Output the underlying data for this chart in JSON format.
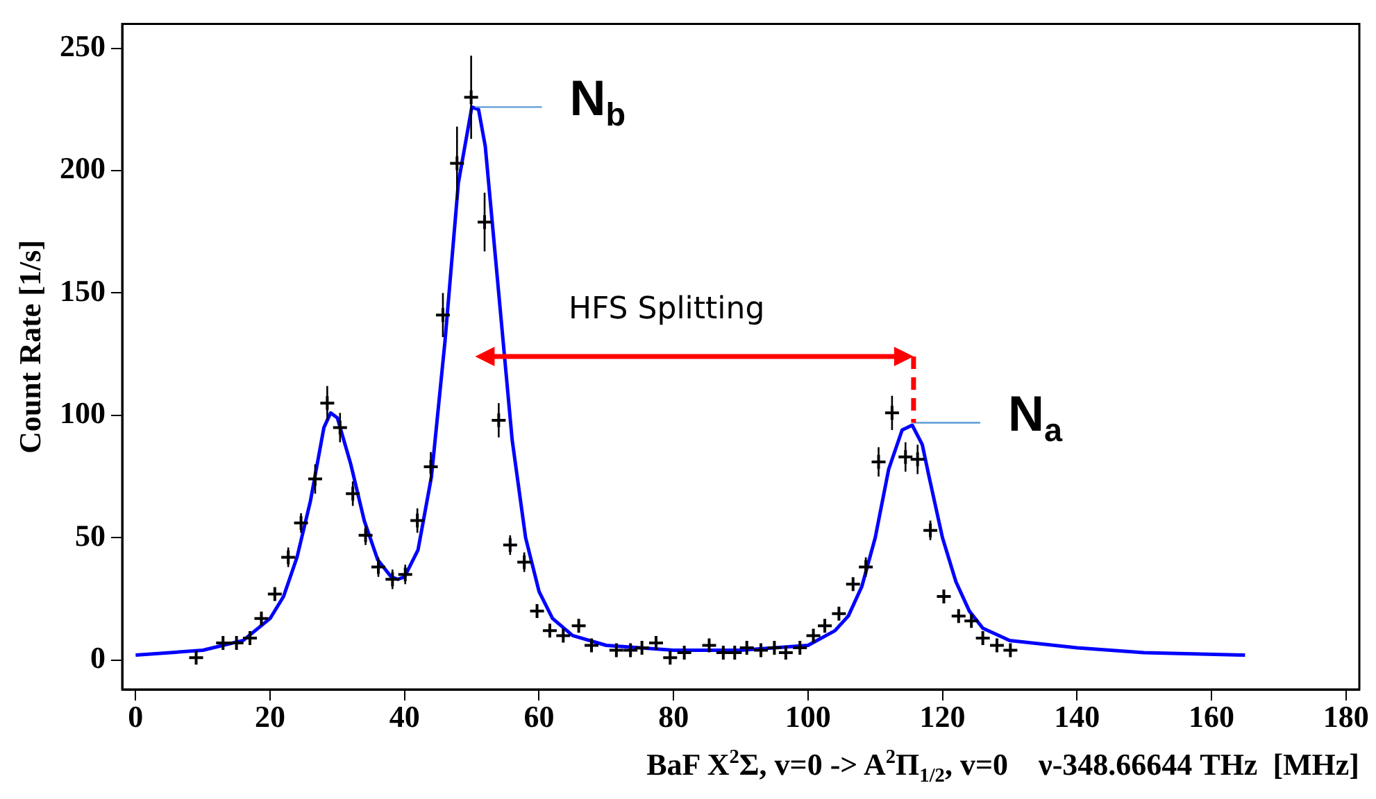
{
  "chart_data": {
    "type": "scatter",
    "xlabel": "BaF X$^{2}$Σ, v=0 -> A$^{2}$Π$_{1/2}$, v=0    ν-348.66644 THz  [MHz]",
    "ylabel": "Count Rate [1/s]",
    "xlim": [
      -2,
      182
    ],
    "xticks": [
      0,
      20,
      40,
      60,
      80,
      100,
      120,
      140,
      160,
      180
    ],
    "ylim": [
      -12,
      260
    ],
    "yticks": [
      0,
      50,
      100,
      150,
      200,
      250
    ],
    "grid": false,
    "legend": false,
    "annotations": [
      {
        "text": "N$_{b}$",
        "x": 50.5,
        "y": 226
      },
      {
        "text": "N$_{a}$",
        "x": 115.7,
        "y": 97
      },
      "HFS Splitting"
    ],
    "series": [
      {
        "type": "scatter",
        "color": "#000000",
        "marker": "cross",
        "x": [
          9,
          13,
          15,
          17,
          18.7,
          20.7,
          22.7,
          24.6,
          26.7,
          28.5,
          30.4,
          32.3,
          34.2,
          36.1,
          38.2,
          40.1,
          41.9,
          43.9,
          45.7,
          47.8,
          49.9,
          51.9,
          54,
          55.7,
          57.8,
          59.7,
          61.6,
          63.6,
          65.9,
          67.8,
          71.5,
          73.6,
          75.3,
          77.4,
          79.5,
          81.6,
          85.3,
          87.4,
          89.1,
          90.9,
          93,
          95,
          96.7,
          98.8,
          100.8,
          102.5,
          104.6,
          106.7,
          108.6,
          110.5,
          112.5,
          114.5,
          116.3,
          118.2,
          120.2,
          122.4,
          124.3,
          126,
          128.1,
          130.1
        ],
        "values": [
          1,
          7,
          7,
          9,
          17,
          27,
          42,
          56,
          74,
          105,
          95,
          68,
          51,
          38,
          33,
          35,
          57,
          79,
          141,
          203,
          230,
          179,
          98,
          47,
          40,
          20,
          12,
          10,
          14,
          6,
          4,
          4,
          5,
          7,
          1,
          3,
          6,
          3,
          3,
          5,
          4,
          5,
          3,
          5,
          10,
          14,
          19,
          31,
          38,
          81,
          101,
          83,
          82,
          53,
          26,
          18,
          16,
          9,
          6,
          4
        ],
        "errors": [
          null,
          null,
          null,
          null,
          null,
          null,
          4,
          4,
          6,
          7,
          6,
          5,
          4,
          4,
          4,
          4,
          5,
          6,
          9,
          15,
          17,
          12,
          7,
          4,
          4,
          null,
          null,
          null,
          null,
          null,
          null,
          null,
          null,
          null,
          null,
          null,
          null,
          null,
          null,
          null,
          null,
          null,
          null,
          null,
          null,
          null,
          null,
          null,
          4,
          6,
          7,
          6,
          6,
          4,
          null,
          null,
          null,
          null,
          null,
          null
        ]
      },
      {
        "type": "line",
        "color": "#0000ff",
        "x": [
          0,
          10,
          16,
          20,
          22,
          24,
          26,
          28,
          29,
          30,
          32,
          34,
          36,
          38,
          39,
          40,
          42,
          44,
          46,
          48,
          50,
          51,
          52,
          54,
          56,
          58,
          60,
          62,
          65,
          70,
          80,
          90,
          100,
          104,
          106,
          108,
          110,
          112,
          114,
          115.5,
          117,
          118,
          120,
          122,
          124,
          126,
          130,
          140,
          150,
          165
        ],
        "values": [
          2,
          4,
          8,
          17,
          26,
          42,
          65,
          95,
          101,
          99,
          80,
          57,
          41,
          34,
          33,
          34,
          45,
          75,
          130,
          195,
          226,
          225,
          210,
          150,
          90,
          50,
          28,
          17,
          10,
          6,
          4,
          4,
          6,
          12,
          18,
          30,
          50,
          78,
          94,
          96,
          88,
          75,
          50,
          32,
          20,
          13,
          8,
          5,
          3,
          2
        ]
      }
    ]
  }
}
